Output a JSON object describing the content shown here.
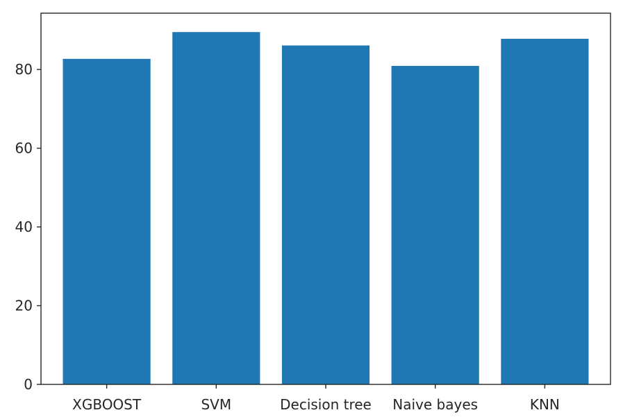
{
  "chart_data": {
    "type": "bar",
    "title": "",
    "xlabel": "",
    "ylabel": "",
    "categories": [
      "XGBOOST",
      "SVM",
      "Decision tree",
      "Naive bayes",
      "KNN"
    ],
    "values": [
      82.7,
      89.5,
      86.1,
      80.9,
      87.8
    ],
    "ylim": [
      0,
      94.3
    ],
    "yticks": [
      0,
      20,
      40,
      60,
      80
    ],
    "grid": false,
    "bar_color": "#1f77b4"
  }
}
